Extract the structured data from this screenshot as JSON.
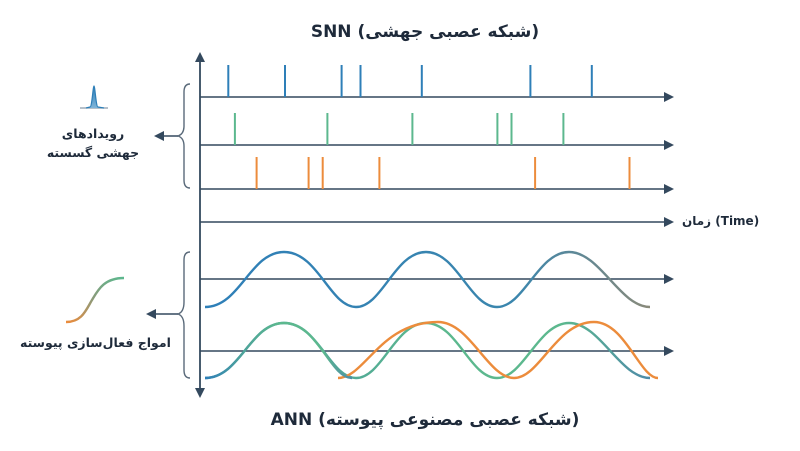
{
  "title_top": "SNN (شبکه عصبی جهشی)",
  "title_bottom": "ANN (شبکه عصبی مصنوعی پیوسته)",
  "label_discrete_line1": "رویدادهای",
  "label_discrete_line2": "جهشی گسسته",
  "label_continuous": "امواج فعال‌سازی پیوسته",
  "label_time": "زمان (Time)",
  "colors": {
    "axis": "#34495e",
    "blue": "#2e7fb8",
    "green": "#5cb88e",
    "orange": "#ec8c3c",
    "bracket": "#5a6a7a",
    "text": "#1e2a3a"
  },
  "spike_trains": [
    {
      "name": "train-1",
      "color": "blue",
      "times": [
        0.06,
        0.18,
        0.3,
        0.34,
        0.47,
        0.7,
        0.83
      ]
    },
    {
      "name": "train-2",
      "color": "green",
      "times": [
        0.074,
        0.27,
        0.45,
        0.63,
        0.66,
        0.77
      ]
    },
    {
      "name": "train-3",
      "color": "orange",
      "times": [
        0.12,
        0.23,
        0.26,
        0.38,
        0.71,
        0.91
      ]
    }
  ]
}
